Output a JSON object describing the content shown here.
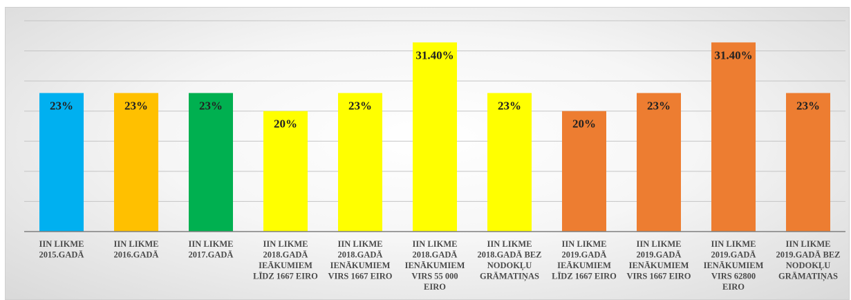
{
  "chart_data": {
    "type": "bar",
    "title": "",
    "xlabel": "",
    "ylabel": "",
    "ylim": [
      0,
      35
    ],
    "grid": true,
    "categories": [
      [
        "IIN LIKME",
        "2015.GADĀ"
      ],
      [
        "IIN LIKME",
        "2016.GADĀ"
      ],
      [
        "IIN LIKME",
        "2017.GADĀ"
      ],
      [
        "IIN LIKME",
        "2018.GADĀ",
        "IEĀKUMIEM",
        "LĪDZ 1667 EIRO"
      ],
      [
        "IIN LIKME",
        "2018.GADĀ",
        "IENĀKUMIEM",
        "VIRS 1667 EIRO"
      ],
      [
        "IIN LIKME",
        "2018.GADĀ",
        "IENĀKUMIEM",
        "VIRS 55 000",
        "EIRO"
      ],
      [
        "IIN LIKME",
        "2018.GADĀ BEZ",
        "NODOKĻU",
        "GRĀMATIŅAS"
      ],
      [
        "IIN LIKME",
        "2019.GADĀ",
        "IEĀKUMIEM",
        "LĪDZ 1667 EIRO"
      ],
      [
        "IIN LIKME",
        "2019.GADĀ",
        "IENĀKUMIEM",
        "VIRS 1667 EIRO"
      ],
      [
        "IIN LIKME",
        "2019.GADĀ",
        "IENĀKUMIEM",
        "VIRS 62800",
        "EIRO"
      ],
      [
        "IIN LIKME",
        "2019.GADĀ BEZ",
        "NODOKĻU",
        "GRĀMATIŅAS"
      ]
    ],
    "values": [
      23,
      23,
      23,
      20,
      23,
      31.4,
      23,
      20,
      23,
      31.4,
      23
    ],
    "data_labels": [
      "23%",
      "23%",
      "23%",
      "20%",
      "23%",
      "31.40%",
      "23%",
      "20%",
      "23%",
      "31.40%",
      "23%"
    ],
    "colors": [
      "#00b0f0",
      "#ffc000",
      "#00b050",
      "#ffff00",
      "#ffff00",
      "#ffff00",
      "#ffff00",
      "#ed7d31",
      "#ed7d31",
      "#ed7d31",
      "#ed7d31"
    ]
  }
}
